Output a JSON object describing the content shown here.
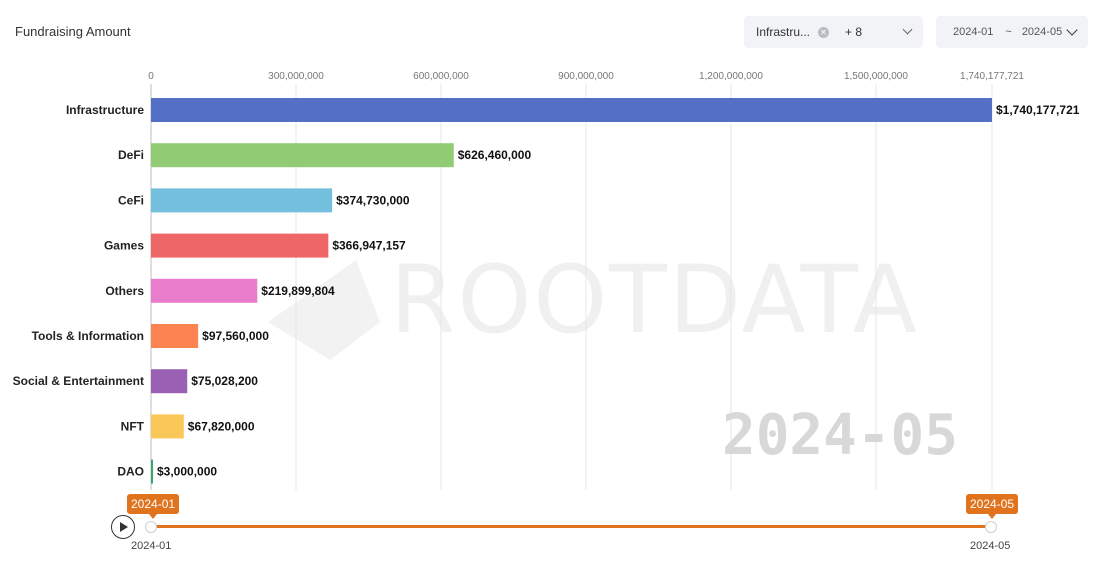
{
  "title": "Fundraising Amount",
  "filter": {
    "selected_tag": "Infrastru...",
    "more": "+ 8",
    "icon": "close-icon"
  },
  "date_range": {
    "start": "2024-01",
    "separator": "~",
    "end": "2024-05"
  },
  "timeline": {
    "start_label": "2024-01",
    "end_label": "2024-05",
    "start_value": "2024-01",
    "end_value": "2024-05",
    "accent": "#e0731e"
  },
  "watermark": "ROOTDATA",
  "chart_data": {
    "type": "bar",
    "orientation": "horizontal",
    "period_label": "2024-05",
    "categories": [
      "Infrastructure",
      "DeFi",
      "CeFi",
      "Games",
      "Others",
      "Tools & Information",
      "Social & Entertainment",
      "NFT",
      "DAO"
    ],
    "values": [
      1740177721,
      626460000,
      374730000,
      366947157,
      219899804,
      97560000,
      75028200,
      67820000,
      3000000
    ],
    "value_labels": [
      "$1,740,177,721",
      "$626,460,000",
      "$374,730,000",
      "$366,947,157",
      "$219,899,804",
      "$97,560,000",
      "$75,028,200",
      "$67,820,000",
      "$3,000,000"
    ],
    "colors": [
      "#5470c6",
      "#91cc75",
      "#73c0de",
      "#ee6666",
      "#ea7ccc",
      "#fc8452",
      "#9a60b4",
      "#fac858",
      "#3ba272"
    ],
    "x_ticks": [
      0,
      300000000,
      600000000,
      900000000,
      1200000000,
      1500000000,
      1740177721
    ],
    "x_tick_labels": [
      "0",
      "300,000,000",
      "600,000,000",
      "900,000,000",
      "1,200,000,000",
      "1,500,000,000",
      "1,740,177,721"
    ],
    "xlim": [
      0,
      1740177721
    ],
    "grid": true
  }
}
